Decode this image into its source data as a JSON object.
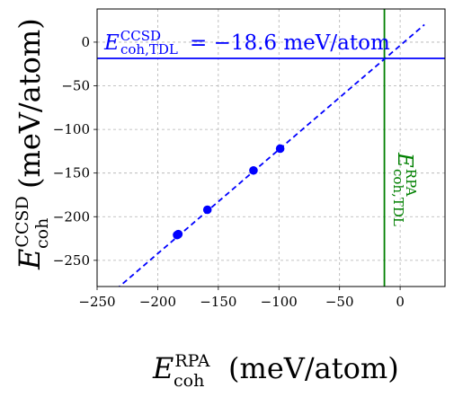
{
  "chart_data": {
    "type": "scatter",
    "x_axis": {
      "label_main": "E",
      "label_sup": "RPA",
      "label_sub": "coh",
      "label_unit": "(meV/atom)",
      "lim": [
        -250,
        37
      ],
      "ticks": [
        -250,
        -200,
        -150,
        -100,
        -50,
        0
      ],
      "tick_labels": [
        "−250",
        "−200",
        "−150",
        "−100",
        "−50",
        "0"
      ]
    },
    "y_axis": {
      "label_main": "E",
      "label_sup": "CCSD",
      "label_sub": "coh",
      "label_unit": "(meV/atom)",
      "lim": [
        -280,
        38
      ],
      "ticks": [
        -250,
        -200,
        -150,
        -100,
        -50,
        0
      ],
      "tick_labels": [
        "−250",
        "−200",
        "−150",
        "−100",
        "−50",
        "0"
      ]
    },
    "grid": true,
    "series": [
      {
        "kind": "points",
        "color": "#0000ff",
        "x": [
          -184,
          -183,
          -159,
          -121,
          -99
        ],
        "y": [
          -221,
          -220,
          -192,
          -147,
          -122
        ]
      },
      {
        "kind": "fit-line",
        "style": "dashed",
        "color": "#0000ff",
        "x": [
          -240,
          20
        ],
        "y": [
          -290,
          20
        ]
      }
    ],
    "hline": {
      "y": -18.6,
      "color": "#0000ff",
      "label_main": "E",
      "label_sup": "CCSD",
      "label_sub": "coh,TDL",
      "label_value": "= −18.6 meV/atom"
    },
    "vline": {
      "x": -13,
      "color": "#008000",
      "label_main": "E",
      "label_sup": "RPA",
      "label_sub": "coh,TDL"
    }
  }
}
